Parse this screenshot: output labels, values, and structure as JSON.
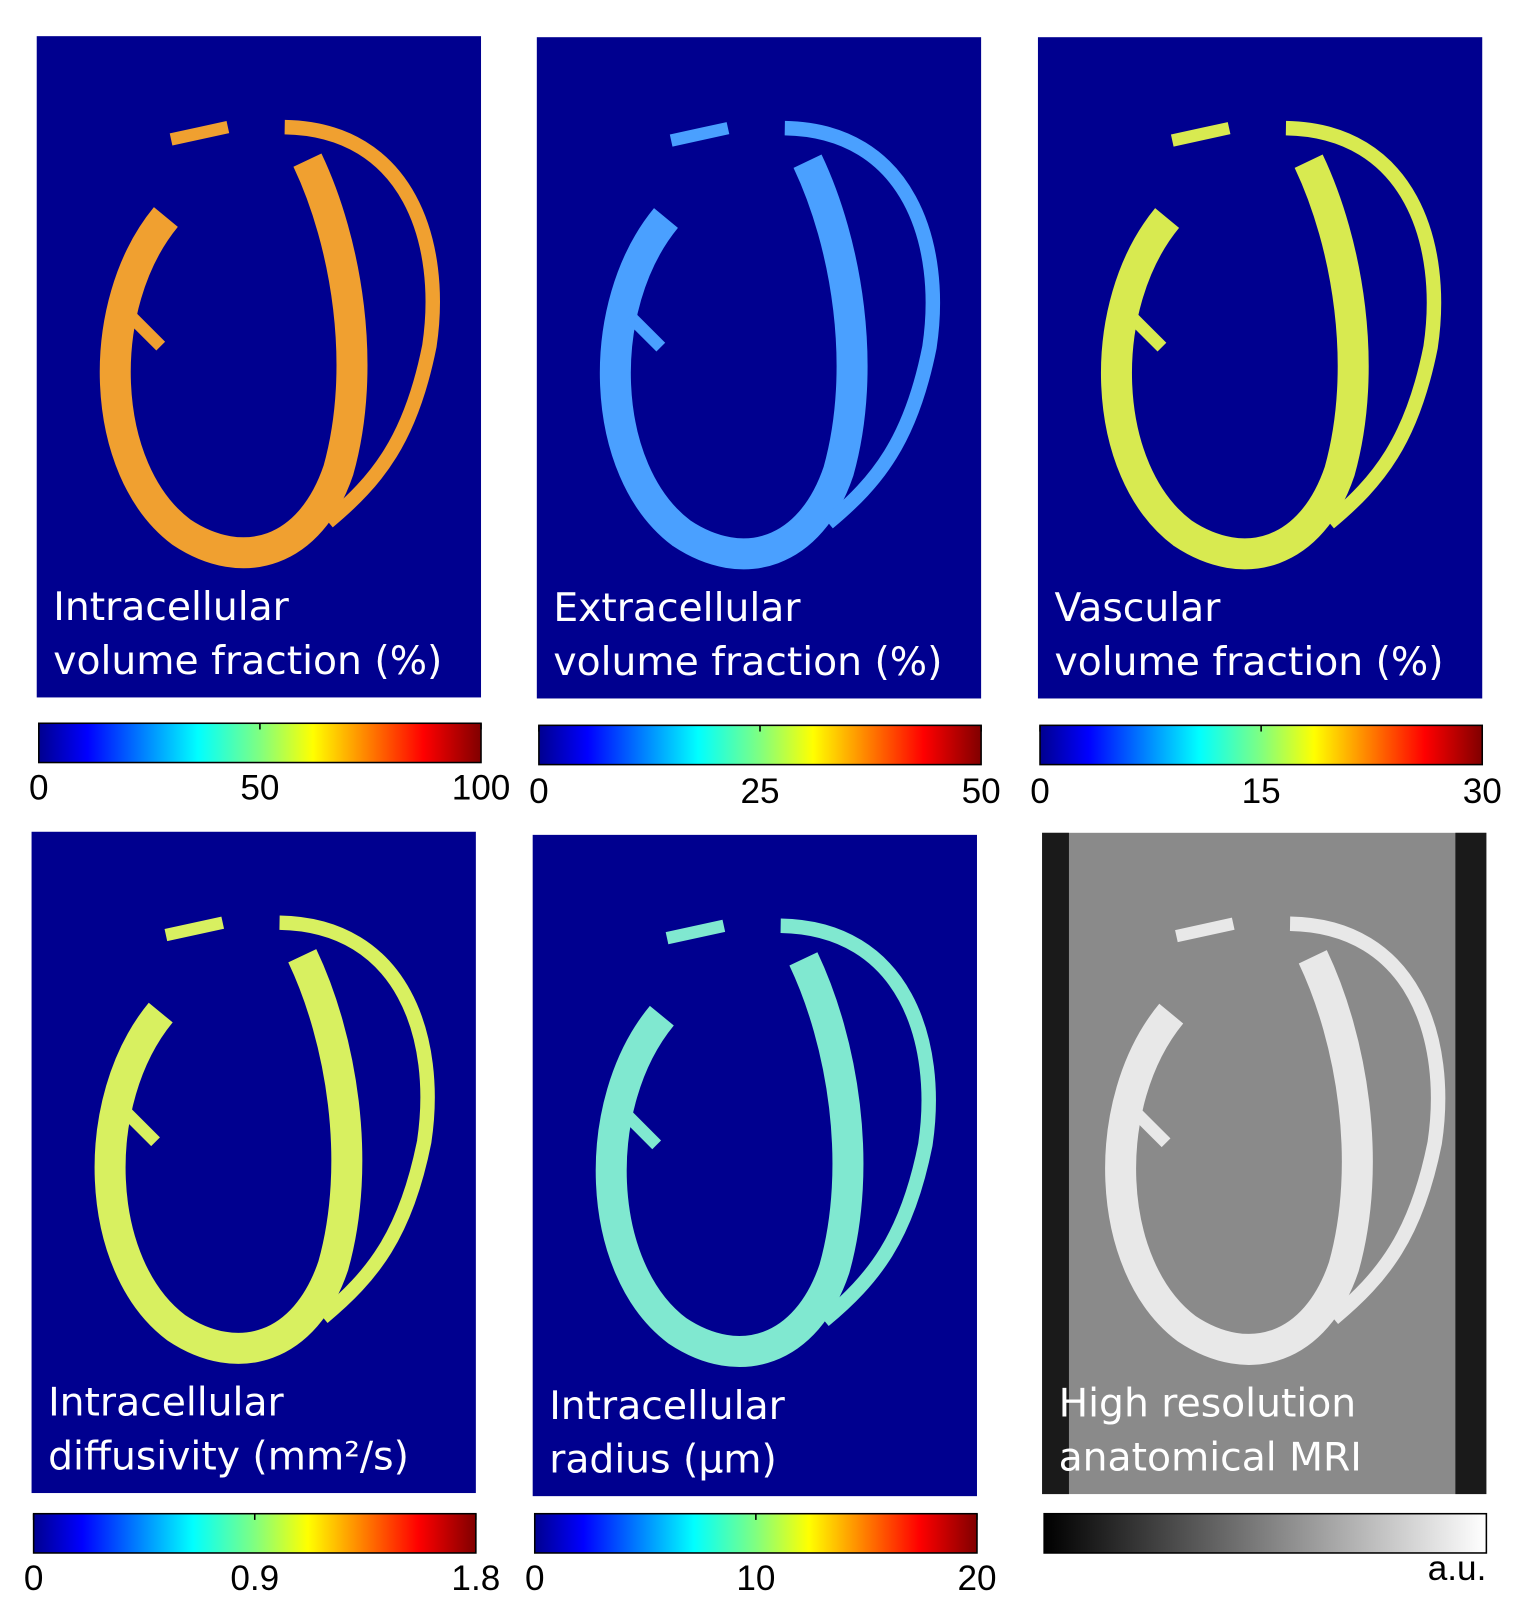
{
  "panels": [
    {
      "label": [
        "Intracellular",
        "volume fraction (%)"
      ],
      "colormap": "jet",
      "ticks": [
        0,
        50,
        100
      ]
    },
    {
      "label": [
        "Extracellular",
        "volume fraction (%)"
      ],
      "colormap": "jet",
      "ticks": [
        0,
        25,
        50
      ]
    },
    {
      "label": [
        "Vascular",
        "volume fraction (%)"
      ],
      "colormap": "jet",
      "ticks": [
        0,
        15,
        30
      ]
    },
    {
      "label": [
        "Intracellular",
        "diffusivity (mm²/s)"
      ],
      "colormap": "jet",
      "ticks": [
        0,
        0.9,
        1.8
      ]
    },
    {
      "label": [
        "Intracellular",
        "radius (µm)"
      ],
      "colormap": "jet",
      "ticks": [
        0,
        10,
        20
      ]
    },
    {
      "label": [
        "High resolution",
        "anatomical MRI"
      ],
      "colormap": "gray",
      "unit": "a.u."
    }
  ]
}
